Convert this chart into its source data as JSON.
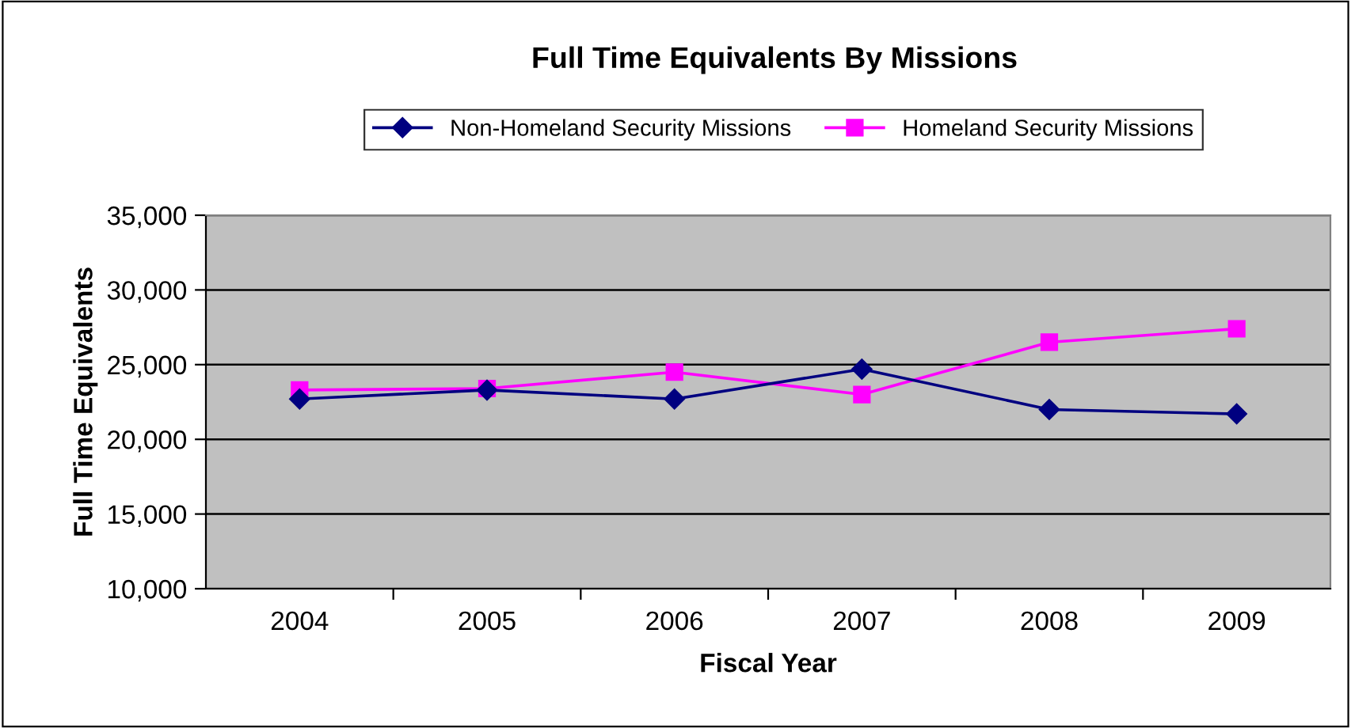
{
  "chart_data": {
    "type": "line",
    "title": "Full Time Equivalents By Missions",
    "xlabel": "Fiscal Year",
    "ylabel": "Full Time Equivalents",
    "categories": [
      "2004",
      "2005",
      "2006",
      "2007",
      "2008",
      "2009"
    ],
    "series": [
      {
        "name": "Non-Homeland Security Missions",
        "color": "#000080",
        "marker": "diamond",
        "values": [
          22700,
          23300,
          22700,
          24700,
          22000,
          21700
        ]
      },
      {
        "name": "Homeland Security Missions",
        "color": "#ff00ff",
        "marker": "square",
        "values": [
          23300,
          23400,
          24500,
          23000,
          26500,
          27400
        ]
      }
    ],
    "ylim": [
      10000,
      35000
    ],
    "yticks": [
      {
        "value": 10000,
        "label": "10,000"
      },
      {
        "value": 15000,
        "label": "15,000"
      },
      {
        "value": 20000,
        "label": "20,000"
      },
      {
        "value": 25000,
        "label": "25,000"
      },
      {
        "value": 30000,
        "label": "30,000"
      },
      {
        "value": 35000,
        "label": "35,000"
      }
    ],
    "grid": "y",
    "legend": "top",
    "line_style": "solid"
  }
}
